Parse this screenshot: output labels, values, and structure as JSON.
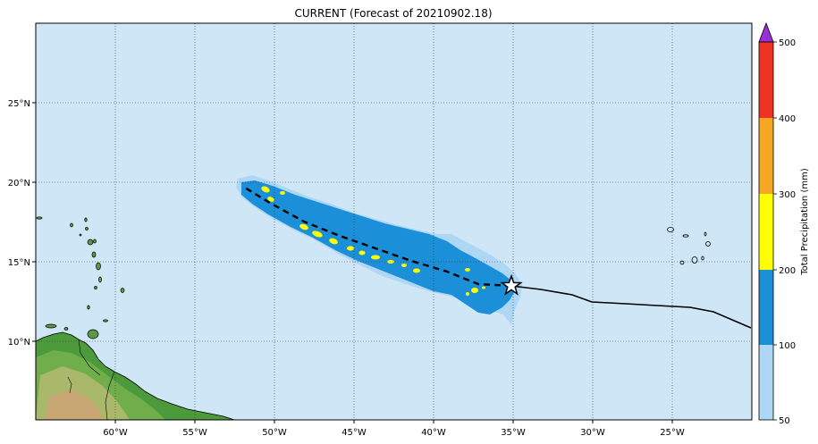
{
  "title": "CURRENT (Forecast of 20210902.18)",
  "x_ticks": [
    "60°W",
    "55°W",
    "50°W",
    "45°W",
    "40°W",
    "35°W",
    "30°W",
    "25°W"
  ],
  "y_ticks": [
    "25°N",
    "20°N",
    "15°N",
    "10°N"
  ],
  "colorbar": {
    "label": "Total Precipitation (mm)",
    "ticks": [
      "50",
      "100",
      "200",
      "300",
      "400",
      "500"
    ],
    "colors": [
      "#aed6f5",
      "#1b8fd8",
      "#ffff00",
      "#f5a623",
      "#ee3322",
      "#9b2fd6"
    ]
  },
  "colors": {
    "ocean": "#cfe6f7",
    "grid": "#333333",
    "track": "#000000"
  },
  "storm_marker": "star-icon"
}
